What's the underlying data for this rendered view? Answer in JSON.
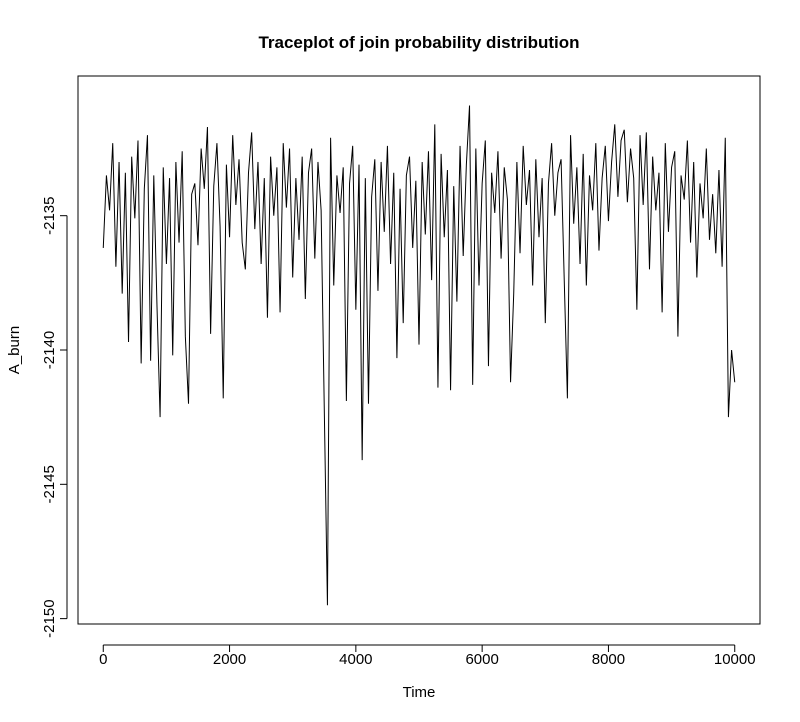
{
  "chart_data": {
    "type": "line",
    "title": "Traceplot of join probability distribution",
    "x_label": "Time",
    "y_label": "A_burn",
    "color": "#000000",
    "xlim": [
      -400,
      10400
    ],
    "ylim": [
      -2150.2,
      -2129.8
    ],
    "xticks": [
      0,
      2000,
      4000,
      6000,
      8000,
      10000
    ],
    "yticks": [
      -2150,
      -2145,
      -2140,
      -2135
    ],
    "x": [
      0,
      50,
      100,
      150,
      200,
      250,
      300,
      350,
      400,
      450,
      500,
      550,
      600,
      650,
      700,
      750,
      800,
      850,
      900,
      950,
      1000,
      1050,
      1100,
      1150,
      1200,
      1250,
      1300,
      1350,
      1400,
      1450,
      1500,
      1550,
      1600,
      1650,
      1700,
      1750,
      1800,
      1850,
      1900,
      1950,
      2000,
      2050,
      2100,
      2150,
      2200,
      2250,
      2300,
      2350,
      2400,
      2450,
      2500,
      2550,
      2600,
      2650,
      2700,
      2750,
      2800,
      2850,
      2900,
      2950,
      3000,
      3050,
      3100,
      3150,
      3200,
      3250,
      3300,
      3350,
      3400,
      3450,
      3500,
      3550,
      3600,
      3650,
      3700,
      3750,
      3800,
      3850,
      3900,
      3950,
      4000,
      4050,
      4100,
      4150,
      4200,
      4250,
      4300,
      4350,
      4400,
      4450,
      4500,
      4550,
      4600,
      4650,
      4700,
      4750,
      4800,
      4850,
      4900,
      4950,
      5000,
      5050,
      5100,
      5150,
      5200,
      5250,
      5300,
      5350,
      5400,
      5450,
      5500,
      5550,
      5600,
      5650,
      5700,
      5750,
      5800,
      5850,
      5900,
      5950,
      6000,
      6050,
      6100,
      6150,
      6200,
      6250,
      6300,
      6350,
      6400,
      6450,
      6500,
      6550,
      6600,
      6650,
      6700,
      6750,
      6800,
      6850,
      6900,
      6950,
      7000,
      7050,
      7100,
      7150,
      7200,
      7250,
      7300,
      7350,
      7400,
      7450,
      7500,
      7550,
      7600,
      7650,
      7700,
      7750,
      7800,
      7850,
      7900,
      7950,
      8000,
      8050,
      8100,
      8150,
      8200,
      8250,
      8300,
      8350,
      8400,
      8450,
      8500,
      8550,
      8600,
      8650,
      8700,
      8750,
      8800,
      8850,
      8900,
      8950,
      9000,
      9050,
      9100,
      9150,
      9200,
      9250,
      9300,
      9350,
      9400,
      9450,
      9500,
      9550,
      9600,
      9650,
      9700,
      9750,
      9800,
      9850,
      9900,
      9950,
      10000
    ],
    "values": [
      -2136.2,
      -2133.5,
      -2134.8,
      -2132.3,
      -2136.9,
      -2133.0,
      -2137.9,
      -2133.4,
      -2139.7,
      -2132.8,
      -2135.1,
      -2132.2,
      -2140.5,
      -2134.0,
      -2132.0,
      -2140.4,
      -2133.5,
      -2138.3,
      -2142.5,
      -2133.2,
      -2136.8,
      -2133.6,
      -2140.2,
      -2133.0,
      -2136.0,
      -2132.6,
      -2139.5,
      -2142.0,
      -2134.2,
      -2133.8,
      -2136.1,
      -2132.5,
      -2134.0,
      -2131.7,
      -2139.4,
      -2133.9,
      -2132.3,
      -2135.4,
      -2141.8,
      -2133.1,
      -2135.8,
      -2132.0,
      -2134.6,
      -2132.9,
      -2136.0,
      -2137.0,
      -2133.4,
      -2131.9,
      -2135.5,
      -2133.0,
      -2136.8,
      -2133.6,
      -2138.8,
      -2132.8,
      -2135.0,
      -2133.2,
      -2138.6,
      -2132.3,
      -2134.7,
      -2132.5,
      -2137.3,
      -2133.6,
      -2135.9,
      -2132.8,
      -2138.1,
      -2133.4,
      -2132.5,
      -2136.6,
      -2133.0,
      -2134.8,
      -2142.2,
      -2149.5,
      -2132.1,
      -2137.6,
      -2133.5,
      -2134.9,
      -2133.2,
      -2141.9,
      -2133.8,
      -2132.4,
      -2138.5,
      -2133.1,
      -2144.1,
      -2133.6,
      -2142.0,
      -2134.3,
      -2132.9,
      -2137.8,
      -2133.0,
      -2135.6,
      -2132.4,
      -2136.8,
      -2133.4,
      -2140.3,
      -2134.0,
      -2139.0,
      -2133.5,
      -2132.8,
      -2136.2,
      -2133.7,
      -2139.8,
      -2133.0,
      -2135.7,
      -2132.6,
      -2137.4,
      -2131.6,
      -2141.4,
      -2132.7,
      -2135.8,
      -2133.3,
      -2141.5,
      -2133.9,
      -2138.2,
      -2132.4,
      -2136.5,
      -2133.1,
      -2130.9,
      -2141.3,
      -2132.5,
      -2137.6,
      -2133.8,
      -2132.2,
      -2140.6,
      -2133.4,
      -2134.9,
      -2132.6,
      -2136.6,
      -2133.2,
      -2134.4,
      -2141.2,
      -2137.9,
      -2133.0,
      -2136.4,
      -2132.4,
      -2134.6,
      -2133.3,
      -2137.6,
      -2132.9,
      -2135.8,
      -2133.6,
      -2139.0,
      -2133.8,
      -2132.3,
      -2135.0,
      -2133.4,
      -2132.9,
      -2137.4,
      -2141.8,
      -2132.0,
      -2135.3,
      -2133.2,
      -2136.8,
      -2132.7,
      -2137.6,
      -2133.5,
      -2134.8,
      -2132.3,
      -2136.3,
      -2133.6,
      -2132.4,
      -2135.2,
      -2133.0,
      -2131.6,
      -2134.3,
      -2132.2,
      -2131.8,
      -2134.5,
      -2132.5,
      -2133.6,
      -2138.5,
      -2132.0,
      -2134.6,
      -2131.9,
      -2137.0,
      -2132.8,
      -2134.8,
      -2133.4,
      -2138.6,
      -2132.3,
      -2135.6,
      -2133.2,
      -2132.6,
      -2139.5,
      -2133.5,
      -2134.4,
      -2132.2,
      -2136.0,
      -2133.0,
      -2137.3,
      -2133.8,
      -2135.1,
      -2132.5,
      -2135.9,
      -2134.2,
      -2136.4,
      -2133.3,
      -2136.9,
      -2132.1,
      -2142.5,
      -2140.0,
      -2141.2
    ]
  }
}
